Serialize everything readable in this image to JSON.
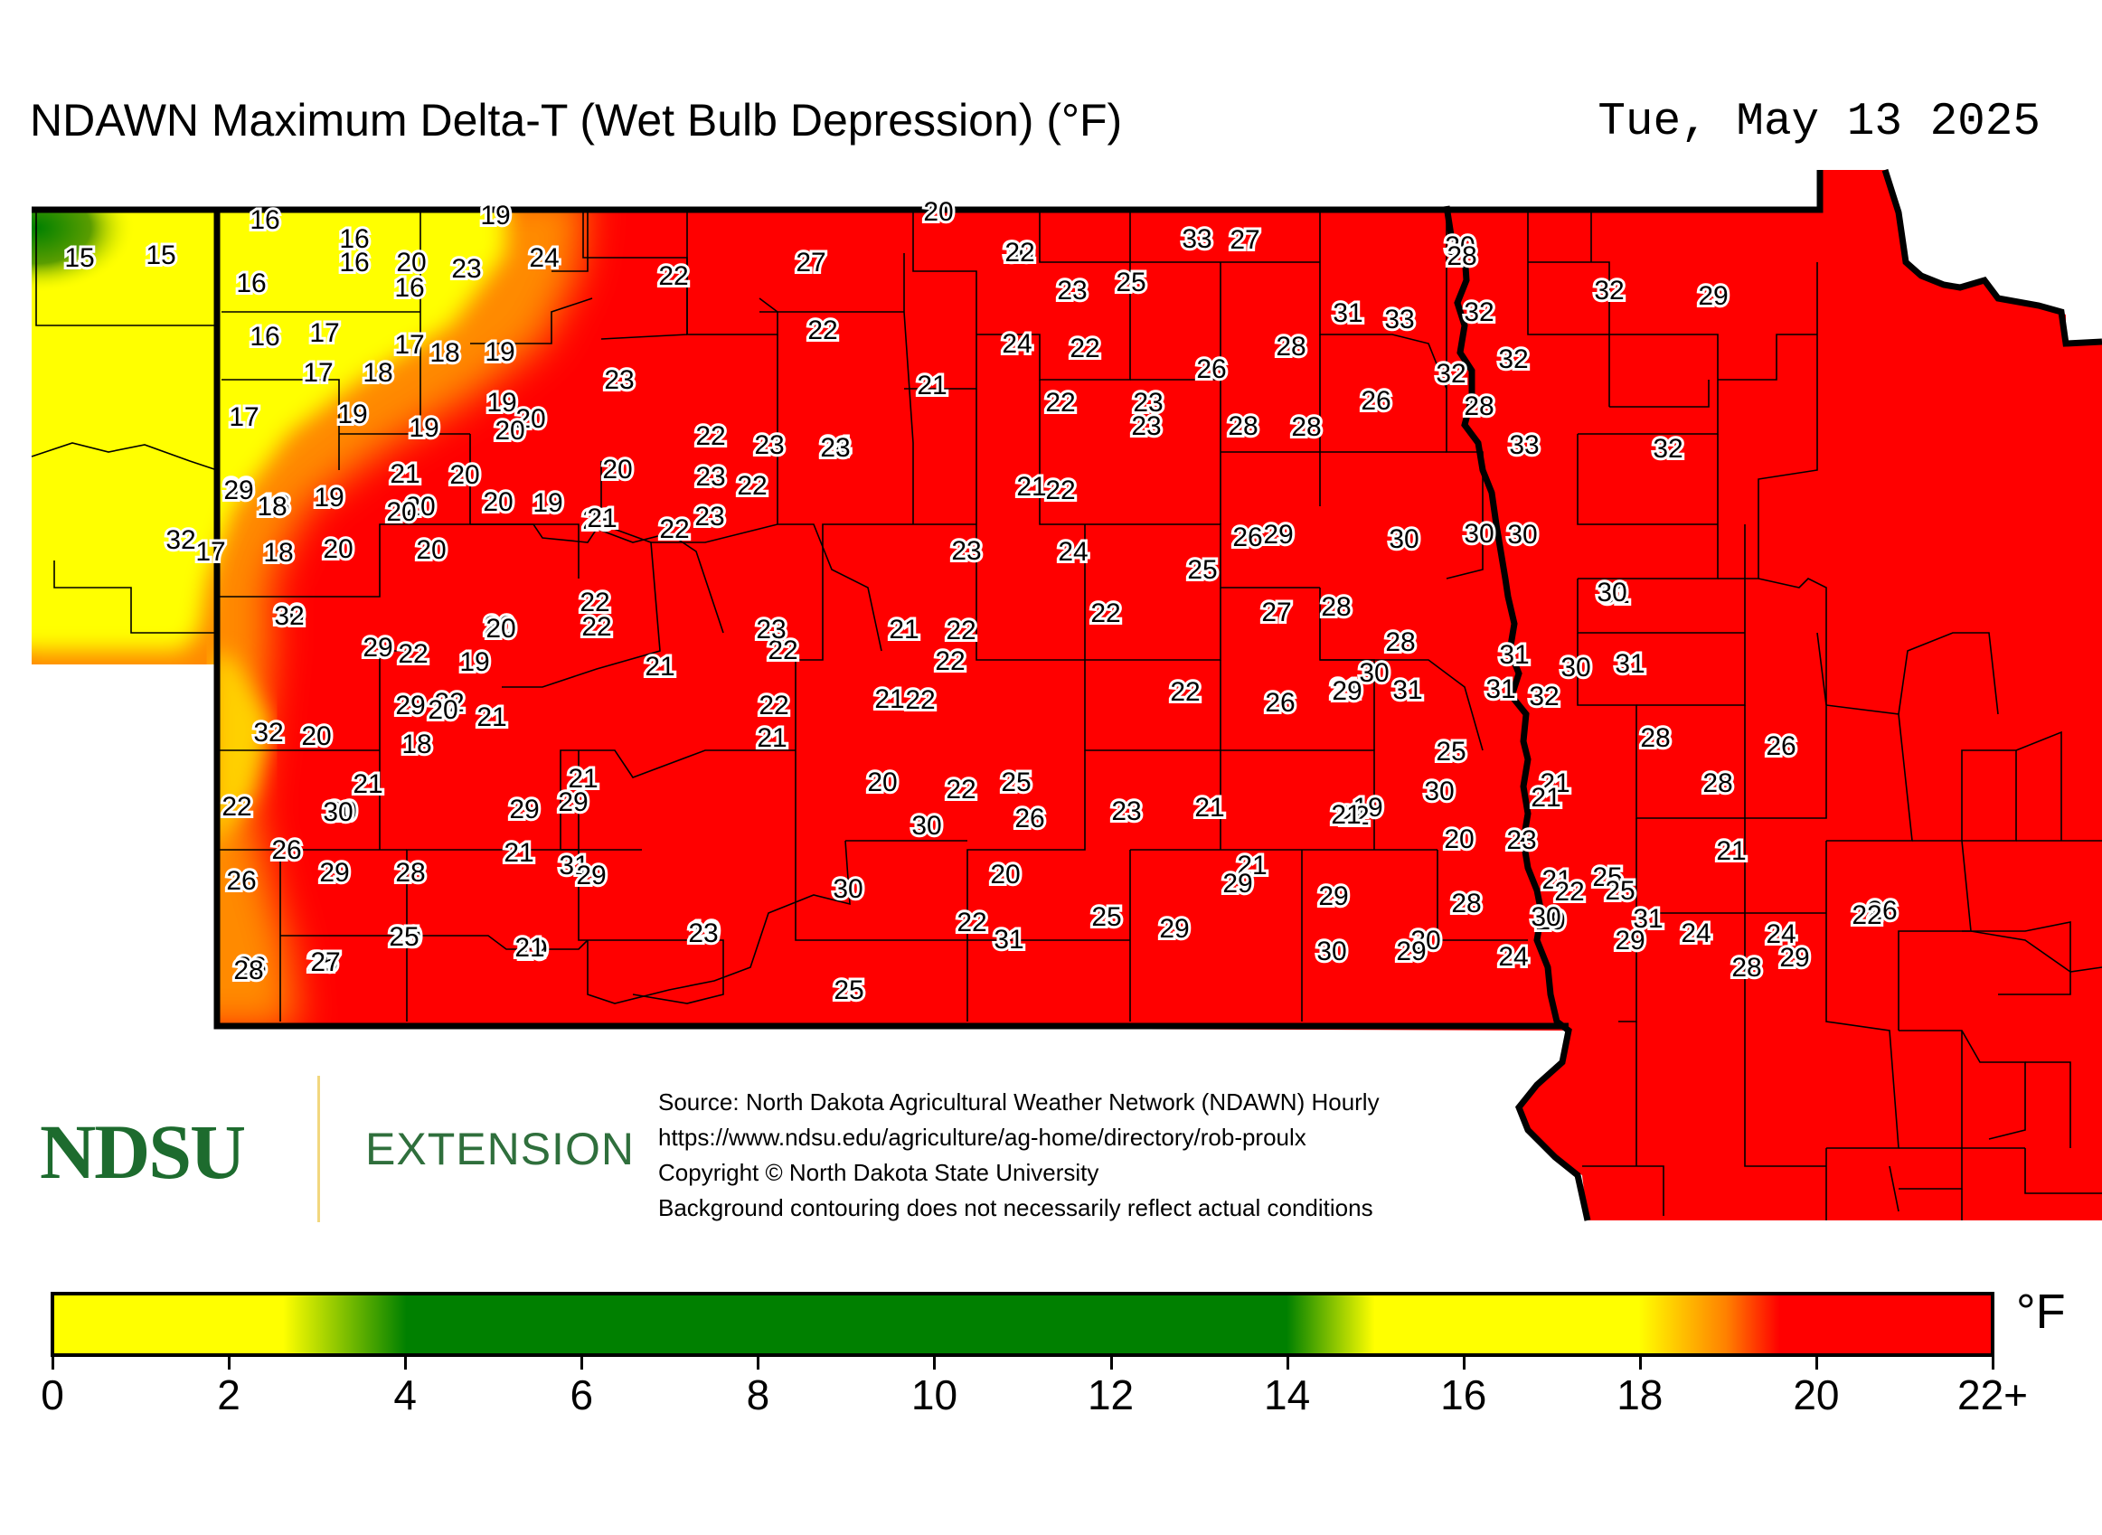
{
  "title": "NDAWN Maximum Delta-T (Wet Bulb Depression) (°F)",
  "date": "Tue, May 13 2025",
  "colors": {
    "red": "#ff0000",
    "orange": "#ff8c00",
    "yellow": "#ffff00",
    "green": "#008000",
    "county_line": "#000000"
  },
  "logo": {
    "ndsu": "NDSU",
    "extension": "EXTENSION"
  },
  "source_lines": [
    "Source: North Dakota Agricultural Weather Network (NDAWN) Hourly",
    "https://www.ndsu.edu/agriculture/ag-home/directory/rob-proulx",
    "Copyright © North Dakota State University",
    "Background contouring does not necessarily reflect actual conditions"
  ],
  "legend": {
    "unit": "°F",
    "ticks": [
      "0",
      "2",
      "4",
      "6",
      "8",
      "10",
      "12",
      "14",
      "16",
      "18",
      "20",
      "22+"
    ],
    "range": [
      0,
      22
    ],
    "gradient_stops": [
      {
        "value": 0,
        "color": "#ffff00"
      },
      {
        "value": 2.6,
        "color": "#ffff00"
      },
      {
        "value": 4,
        "color": "#008000"
      },
      {
        "value": 14,
        "color": "#008000"
      },
      {
        "value": 15,
        "color": "#ffff00"
      },
      {
        "value": 18,
        "color": "#ffff00"
      },
      {
        "value": 19,
        "color": "#ff8000"
      },
      {
        "value": 19.6,
        "color": "#ff0000"
      },
      {
        "value": 22,
        "color": "#ff0000"
      }
    ]
  },
  "station_values": [
    "16",
    "19",
    "20",
    "15",
    "15",
    "16",
    "16",
    "20",
    "23",
    "24",
    "22",
    "27",
    "30",
    "33",
    "30",
    "28",
    "16",
    "16",
    "27",
    "23",
    "25",
    "22",
    "24",
    "22",
    "31",
    "33",
    "32",
    "32",
    "29",
    "16",
    "17",
    "17",
    "18",
    "17",
    "18",
    "19",
    "23",
    "22",
    "21",
    "26",
    "28",
    "32",
    "32",
    "17",
    "19",
    "20",
    "19",
    "19",
    "20",
    "20",
    "22",
    "23",
    "24",
    "22",
    "23",
    "26",
    "28",
    "33",
    "33",
    "18",
    "20",
    "21",
    "20",
    "20",
    "22",
    "23",
    "22",
    "23",
    "21",
    "22",
    "23",
    "28",
    "28",
    "32",
    "29",
    "18",
    "19",
    "20",
    "19",
    "23",
    "23",
    "21",
    "23",
    "24",
    "25",
    "26",
    "29",
    "30",
    "30",
    "30",
    "31",
    "32",
    "17",
    "18",
    "20",
    "20",
    "20",
    "20",
    "22",
    "21",
    "22",
    "22",
    "27",
    "28",
    "28",
    "30",
    "30",
    "32",
    "29",
    "20",
    "19",
    "22",
    "22",
    "23",
    "21",
    "22",
    "21",
    "31",
    "30",
    "31",
    "29",
    "22",
    "21",
    "22",
    "22",
    "22",
    "26",
    "29",
    "31",
    "31",
    "32",
    "32",
    "18",
    "20",
    "21",
    "21",
    "22",
    "28",
    "26",
    "20",
    "21",
    "20",
    "21",
    "21",
    "22",
    "20",
    "22",
    "25",
    "26",
    "25",
    "28",
    "30",
    "29",
    "29",
    "31",
    "30",
    "26",
    "21",
    "23",
    "19",
    "20",
    "21",
    "21",
    "21",
    "22",
    "30",
    "25",
    "21",
    "29",
    "28",
    "29",
    "30",
    "20",
    "21",
    "21",
    "23",
    "22",
    "28",
    "25",
    "31",
    "26",
    "26",
    "25",
    "20",
    "19",
    "19",
    "22",
    "25",
    "29",
    "29",
    "30",
    "29",
    "28",
    "27",
    "25",
    "21",
    "23",
    "25",
    "31",
    "29",
    "30",
    "29",
    "24",
    "30",
    "29",
    "24",
    "24",
    "29",
    "26",
    "22",
    "28"
  ]
}
